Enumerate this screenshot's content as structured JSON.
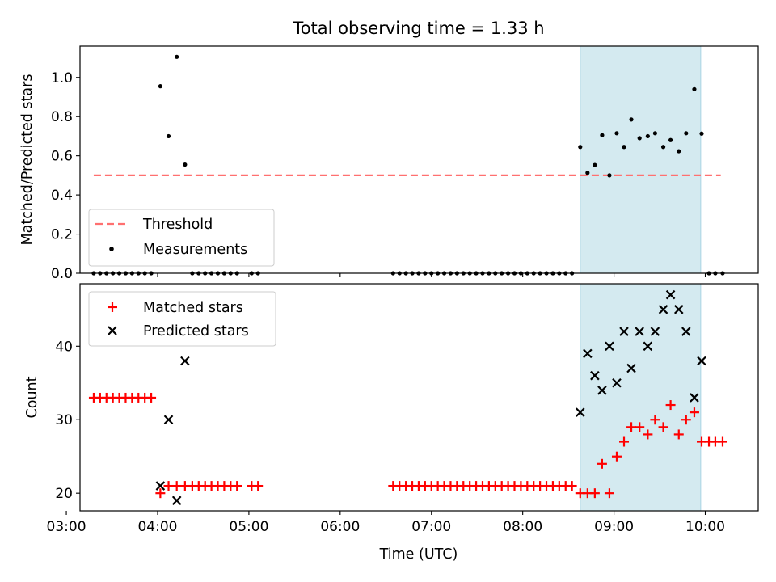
{
  "chart_data": [
    {
      "type": "scatter",
      "title": "Total observing time = 1.33 h",
      "ylabel": "Matched/Predicted stars",
      "xlim": [
        3.15,
        10.58
      ],
      "ylim": [
        0.0,
        1.16
      ],
      "yticks": [
        0.0,
        0.2,
        0.4,
        0.6,
        0.8,
        1.0
      ],
      "yticklabels": [
        "0.0",
        "0.2",
        "0.4",
        "0.6",
        "0.8",
        "1.0"
      ],
      "shaded_region": {
        "x": [
          8.63,
          9.95
        ],
        "color": "#d4eaf0"
      },
      "legend_location": "lower-left",
      "series": [
        {
          "name": "Threshold",
          "kind": "dashed-line",
          "color": "#ff7070",
          "x": [
            3.3,
            10.17
          ],
          "y": [
            0.5,
            0.5
          ]
        },
        {
          "name": "Measurements",
          "kind": "dot",
          "color": "#000000",
          "x": [
            3.3,
            3.37,
            3.44,
            3.51,
            3.58,
            3.65,
            3.72,
            3.79,
            3.86,
            3.93,
            4.03,
            4.12,
            4.21,
            4.3,
            4.38,
            4.45,
            4.52,
            4.59,
            4.66,
            4.73,
            4.8,
            4.87,
            5.03,
            5.1,
            6.58,
            6.65,
            6.72,
            6.79,
            6.86,
            6.93,
            7.0,
            7.07,
            7.14,
            7.21,
            7.28,
            7.35,
            7.42,
            7.49,
            7.56,
            7.63,
            7.7,
            7.77,
            7.84,
            7.91,
            7.98,
            8.05,
            8.12,
            8.19,
            8.26,
            8.33,
            8.4,
            8.47,
            8.54,
            8.63,
            8.71,
            8.79,
            8.87,
            8.95,
            9.03,
            9.11,
            9.19,
            9.28,
            9.37,
            9.45,
            9.54,
            9.62,
            9.71,
            9.79,
            9.88,
            9.96,
            10.04,
            10.11,
            10.19
          ],
          "y": [
            0,
            0,
            0,
            0,
            0,
            0,
            0,
            0,
            0,
            0,
            0.955,
            0.7,
            1.105,
            0.555,
            0,
            0,
            0,
            0,
            0,
            0,
            0,
            0,
            0,
            0,
            0,
            0,
            0,
            0,
            0,
            0,
            0,
            0,
            0,
            0,
            0,
            0,
            0,
            0,
            0,
            0,
            0,
            0,
            0,
            0,
            0,
            0,
            0,
            0,
            0,
            0,
            0,
            0,
            0,
            0.645,
            0.513,
            0.553,
            0.705,
            0.5,
            0.715,
            0.645,
            0.785,
            0.69,
            0.7,
            0.715,
            0.645,
            0.68,
            0.623,
            0.715,
            0.94,
            0.713,
            0,
            0,
            0
          ]
        }
      ]
    },
    {
      "type": "scatter",
      "xlabel": "Time (UTC)",
      "ylabel": "Count",
      "xlim": [
        3.15,
        10.58
      ],
      "ylim": [
        17.6,
        48.5
      ],
      "xticks": [
        3,
        4,
        5,
        6,
        7,
        8,
        9,
        10
      ],
      "xticklabels": [
        "03:00",
        "04:00",
        "05:00",
        "06:00",
        "07:00",
        "08:00",
        "09:00",
        "10:00"
      ],
      "yticks": [
        20,
        30,
        40
      ],
      "yticklabels": [
        "20",
        "30",
        "40"
      ],
      "shaded_region": {
        "x": [
          8.63,
          9.95
        ],
        "color": "#d4eaf0"
      },
      "legend_location": "top-left",
      "series": [
        {
          "name": "Matched stars",
          "kind": "plus",
          "color": "#ff0000",
          "x": [
            3.3,
            3.37,
            3.44,
            3.51,
            3.58,
            3.65,
            3.72,
            3.79,
            3.86,
            3.93,
            4.03,
            4.12,
            4.21,
            4.3,
            4.38,
            4.45,
            4.52,
            4.59,
            4.66,
            4.73,
            4.8,
            4.87,
            5.03,
            5.1,
            6.58,
            6.65,
            6.72,
            6.79,
            6.86,
            6.93,
            7.0,
            7.07,
            7.14,
            7.21,
            7.28,
            7.35,
            7.42,
            7.49,
            7.56,
            7.63,
            7.7,
            7.77,
            7.84,
            7.91,
            7.98,
            8.05,
            8.12,
            8.19,
            8.26,
            8.33,
            8.4,
            8.47,
            8.54,
            8.63,
            8.71,
            8.79,
            8.87,
            8.95,
            9.03,
            9.11,
            9.19,
            9.28,
            9.37,
            9.45,
            9.54,
            9.62,
            9.71,
            9.79,
            9.88,
            9.96,
            10.04,
            10.11,
            10.19
          ],
          "y": [
            33,
            33,
            33,
            33,
            33,
            33,
            33,
            33,
            33,
            33,
            20,
            21,
            21,
            21,
            21,
            21,
            21,
            21,
            21,
            21,
            21,
            21,
            21,
            21,
            21,
            21,
            21,
            21,
            21,
            21,
            21,
            21,
            21,
            21,
            21,
            21,
            21,
            21,
            21,
            21,
            21,
            21,
            21,
            21,
            21,
            21,
            21,
            21,
            21,
            21,
            21,
            21,
            21,
            20,
            20,
            20,
            24,
            20,
            25,
            27,
            29,
            29,
            28,
            30,
            29,
            32,
            28,
            30,
            31,
            27,
            27,
            27,
            27
          ]
        },
        {
          "name": "Predicted stars",
          "kind": "cross",
          "color": "#000000",
          "x": [
            4.03,
            4.12,
            4.21,
            4.3,
            8.63,
            8.71,
            8.79,
            8.87,
            8.95,
            9.03,
            9.11,
            9.19,
            9.28,
            9.37,
            9.45,
            9.54,
            9.62,
            9.71,
            9.79,
            9.88,
            9.96
          ],
          "y": [
            21,
            30,
            19,
            38,
            31,
            39,
            36,
            34,
            40,
            35,
            42,
            37,
            42,
            40,
            42,
            45,
            47,
            45,
            42,
            33,
            38
          ]
        }
      ]
    }
  ]
}
